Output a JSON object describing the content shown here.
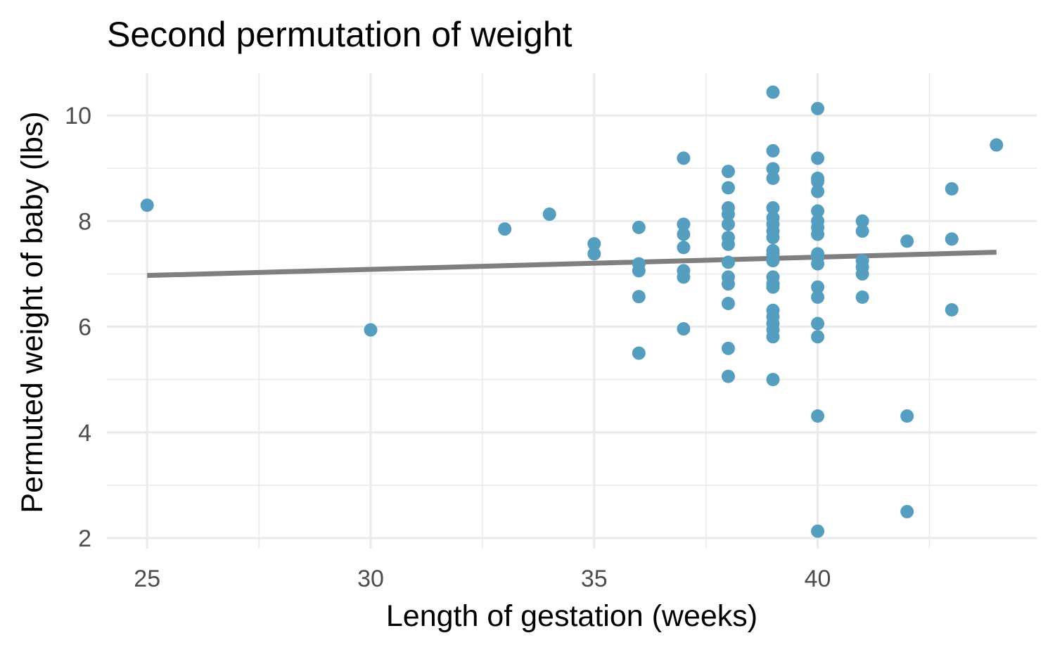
{
  "chart_data": {
    "type": "scatter",
    "title": "Second permutation of weight",
    "xlabel": "Length of gestation (weeks)",
    "ylabel": "Permuted weight of baby (lbs)",
    "xlim": [
      24.1,
      44.9
    ],
    "ylim": [
      1.8,
      10.8
    ],
    "x_ticks": [
      25,
      30,
      35,
      40
    ],
    "y_ticks": [
      2,
      4,
      6,
      8,
      10
    ],
    "x_minor": [
      27.5,
      32.5,
      37.5,
      42.5
    ],
    "y_minor": [
      3,
      5,
      7,
      9
    ],
    "grid": true,
    "point_color": "#569ebf",
    "fit_color": "#7f7f7f",
    "points": [
      {
        "x": 25,
        "y": 8.3
      },
      {
        "x": 30,
        "y": 5.94
      },
      {
        "x": 33,
        "y": 7.85
      },
      {
        "x": 34,
        "y": 8.13
      },
      {
        "x": 35,
        "y": 7.57
      },
      {
        "x": 35,
        "y": 7.38
      },
      {
        "x": 36,
        "y": 7.88
      },
      {
        "x": 36,
        "y": 7.19
      },
      {
        "x": 36,
        "y": 7.06
      },
      {
        "x": 36,
        "y": 6.57
      },
      {
        "x": 36,
        "y": 5.5
      },
      {
        "x": 37,
        "y": 9.19
      },
      {
        "x": 37,
        "y": 7.94
      },
      {
        "x": 37,
        "y": 7.75
      },
      {
        "x": 37,
        "y": 7.5
      },
      {
        "x": 37,
        "y": 7.06
      },
      {
        "x": 37,
        "y": 6.94
      },
      {
        "x": 37,
        "y": 5.96
      },
      {
        "x": 38,
        "y": 8.94
      },
      {
        "x": 38,
        "y": 8.63
      },
      {
        "x": 38,
        "y": 8.25
      },
      {
        "x": 38,
        "y": 8.13
      },
      {
        "x": 38,
        "y": 7.94
      },
      {
        "x": 38,
        "y": 7.69
      },
      {
        "x": 38,
        "y": 7.56
      },
      {
        "x": 38,
        "y": 7.22
      },
      {
        "x": 38,
        "y": 6.94
      },
      {
        "x": 38,
        "y": 6.81
      },
      {
        "x": 38,
        "y": 6.44
      },
      {
        "x": 38,
        "y": 5.59
      },
      {
        "x": 38,
        "y": 5.06
      },
      {
        "x": 39,
        "y": 10.44
      },
      {
        "x": 39,
        "y": 9.33
      },
      {
        "x": 39,
        "y": 8.99
      },
      {
        "x": 39,
        "y": 8.81
      },
      {
        "x": 39,
        "y": 8.25
      },
      {
        "x": 39,
        "y": 8.06
      },
      {
        "x": 39,
        "y": 7.94
      },
      {
        "x": 39,
        "y": 7.81
      },
      {
        "x": 39,
        "y": 7.69
      },
      {
        "x": 39,
        "y": 7.44
      },
      {
        "x": 39,
        "y": 7.38
      },
      {
        "x": 39,
        "y": 7.25
      },
      {
        "x": 39,
        "y": 6.94
      },
      {
        "x": 39,
        "y": 6.81
      },
      {
        "x": 39,
        "y": 6.75
      },
      {
        "x": 39,
        "y": 6.31
      },
      {
        "x": 39,
        "y": 6.19
      },
      {
        "x": 39,
        "y": 6.06
      },
      {
        "x": 39,
        "y": 5.94
      },
      {
        "x": 39,
        "y": 5.81
      },
      {
        "x": 39,
        "y": 5.0
      },
      {
        "x": 40,
        "y": 10.13
      },
      {
        "x": 40,
        "y": 9.19
      },
      {
        "x": 40,
        "y": 8.81
      },
      {
        "x": 40,
        "y": 8.75
      },
      {
        "x": 40,
        "y": 8.56
      },
      {
        "x": 40,
        "y": 8.19
      },
      {
        "x": 40,
        "y": 8.0
      },
      {
        "x": 40,
        "y": 7.88
      },
      {
        "x": 40,
        "y": 7.75
      },
      {
        "x": 40,
        "y": 7.38
      },
      {
        "x": 40,
        "y": 7.31
      },
      {
        "x": 40,
        "y": 7.19
      },
      {
        "x": 40,
        "y": 6.75
      },
      {
        "x": 40,
        "y": 6.56
      },
      {
        "x": 40,
        "y": 6.06
      },
      {
        "x": 40,
        "y": 5.81
      },
      {
        "x": 40,
        "y": 4.31
      },
      {
        "x": 40,
        "y": 2.13
      },
      {
        "x": 41,
        "y": 8.0
      },
      {
        "x": 41,
        "y": 7.81
      },
      {
        "x": 41,
        "y": 7.25
      },
      {
        "x": 41,
        "y": 7.13
      },
      {
        "x": 41,
        "y": 7.0
      },
      {
        "x": 41,
        "y": 6.56
      },
      {
        "x": 42,
        "y": 7.62
      },
      {
        "x": 42,
        "y": 4.31
      },
      {
        "x": 42,
        "y": 2.5
      },
      {
        "x": 43,
        "y": 8.61
      },
      {
        "x": 43,
        "y": 7.66
      },
      {
        "x": 43,
        "y": 6.32
      },
      {
        "x": 44,
        "y": 9.44
      }
    ],
    "fit_line": {
      "x": [
        25,
        44
      ],
      "y": [
        6.97,
        7.41
      ]
    }
  }
}
